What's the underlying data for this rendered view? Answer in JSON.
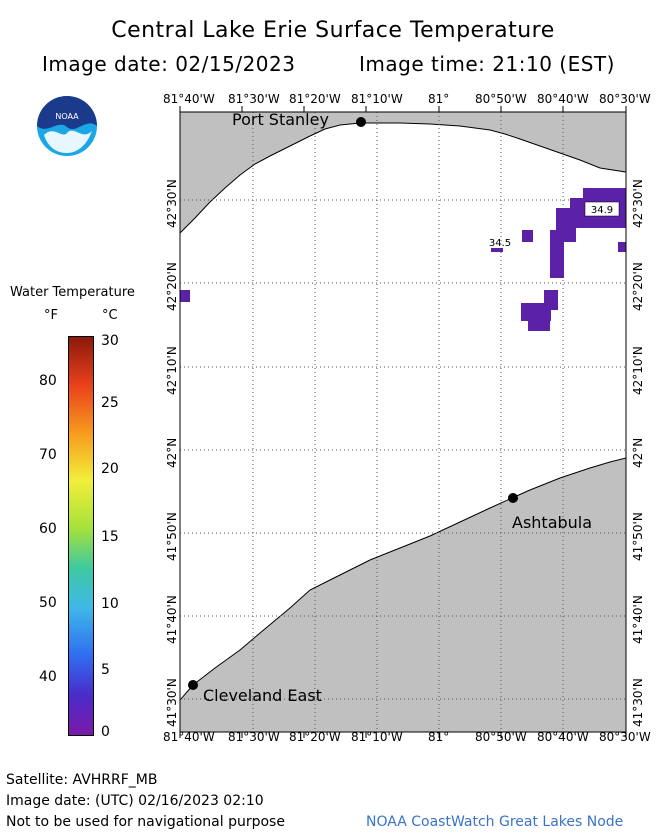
{
  "header": {
    "title": "Central Lake Erie Surface Temperature",
    "image_date": "Image date: 02/15/2023",
    "image_time": "Image time: 21:10 (EST)"
  },
  "logo": {
    "text": "NOAA"
  },
  "map": {
    "lon_ticks": [
      "81°40'W",
      "81°30'W",
      "81°20'W",
      "81°10'W",
      "81°",
      "80°50'W",
      "80°40'W",
      "80°30'W"
    ],
    "lat_ticks": [
      "42°30'N",
      "42°20'N",
      "42°10'N",
      "42°N",
      "41°50'N",
      "41°40'N",
      "41°30'N"
    ],
    "places": {
      "port_stanley": "Port Stanley",
      "ashtabula": "Ashtabula",
      "cleveland": "Cleveland East"
    },
    "temp_labels": {
      "a": "34.5",
      "b": "34.9"
    },
    "colors": {
      "land": "#c0c0c0",
      "water": "#ffffff",
      "cold_pixels": "#5b21a6"
    }
  },
  "legend": {
    "title": "Water Temperature",
    "unit_f": "°F",
    "unit_c": "°C",
    "f_ticks": [
      "80",
      "70",
      "60",
      "50",
      "40"
    ],
    "c_ticks": [
      "30",
      "25",
      "20",
      "15",
      "10",
      "5",
      "0"
    ]
  },
  "footer": {
    "satellite": "Satellite: AVHRRF_MB",
    "utc_date": "Image date: (UTC) 02/16/2023  02:10",
    "disclaimer": "Not to be used for navigational purpose",
    "credit": "NOAA CoastWatch Great Lakes Node"
  }
}
